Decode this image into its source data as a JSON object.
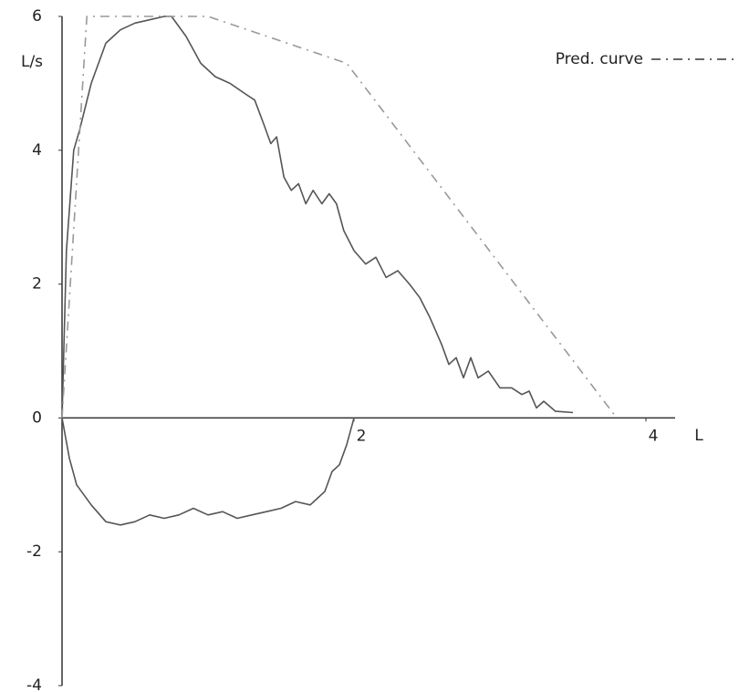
{
  "chart_data": {
    "type": "line",
    "xlabel": "L",
    "ylabel": "L/s",
    "xlim": [
      0,
      4.2
    ],
    "ylim": [
      -4,
      6
    ],
    "xticks": [
      2,
      4
    ],
    "yticks": [
      -4,
      -2,
      0,
      2,
      4,
      6
    ],
    "legend": "top-right",
    "series": [
      {
        "color": "#555555",
        "dash": "solid",
        "x": [
          0,
          0.03,
          0.08,
          0.12,
          0.2,
          0.3,
          0.4,
          0.5,
          0.6,
          0.7,
          0.75,
          0.85,
          0.95,
          1.05,
          1.15,
          1.25,
          1.32,
          1.38,
          1.43,
          1.47,
          1.52,
          1.57,
          1.62,
          1.67,
          1.72,
          1.78,
          1.83,
          1.88,
          1.93,
          2.0,
          2.08,
          2.15,
          2.22,
          2.3,
          2.38,
          2.45,
          2.52,
          2.6,
          2.65,
          2.7,
          2.75,
          2.8,
          2.85,
          2.92,
          3.0,
          3.08,
          3.15,
          3.2,
          3.25,
          3.3,
          3.38,
          3.5,
          null,
          0,
          0.05,
          0.1,
          0.2,
          0.3,
          0.4,
          0.5,
          0.6,
          0.7,
          0.8,
          0.9,
          1.0,
          1.1,
          1.2,
          1.3,
          1.4,
          1.5,
          1.6,
          1.7,
          1.75,
          1.8,
          1.85,
          1.9,
          1.95,
          2.0
        ],
        "values": [
          0,
          2.5,
          4.0,
          4.3,
          5.0,
          5.6,
          5.8,
          5.9,
          5.95,
          6.0,
          6.0,
          5.7,
          5.3,
          5.1,
          5.0,
          4.85,
          4.75,
          4.4,
          4.1,
          4.2,
          3.6,
          3.4,
          3.5,
          3.2,
          3.4,
          3.2,
          3.35,
          3.2,
          2.8,
          2.5,
          2.3,
          2.4,
          2.1,
          2.2,
          2.0,
          1.8,
          1.5,
          1.1,
          0.8,
          0.9,
          0.6,
          0.9,
          0.6,
          0.7,
          0.45,
          0.45,
          0.35,
          0.4,
          0.15,
          0.25,
          0.1,
          0.08,
          null,
          0,
          -0.6,
          -1.0,
          -1.3,
          -1.55,
          -1.6,
          -1.55,
          -1.45,
          -1.5,
          -1.45,
          -1.35,
          -1.45,
          -1.4,
          -1.5,
          -1.45,
          -1.4,
          -1.35,
          -1.25,
          -1.3,
          -1.2,
          -1.1,
          -0.8,
          -0.7,
          -0.4,
          0
        ]
      },
      {
        "name": "Pred. curve",
        "color": "#999999",
        "dash": "dash-dot",
        "x": [
          0,
          0.17,
          1.0,
          1.95,
          3.8
        ],
        "values": [
          0,
          6,
          6,
          5.3,
          0
        ]
      }
    ]
  }
}
